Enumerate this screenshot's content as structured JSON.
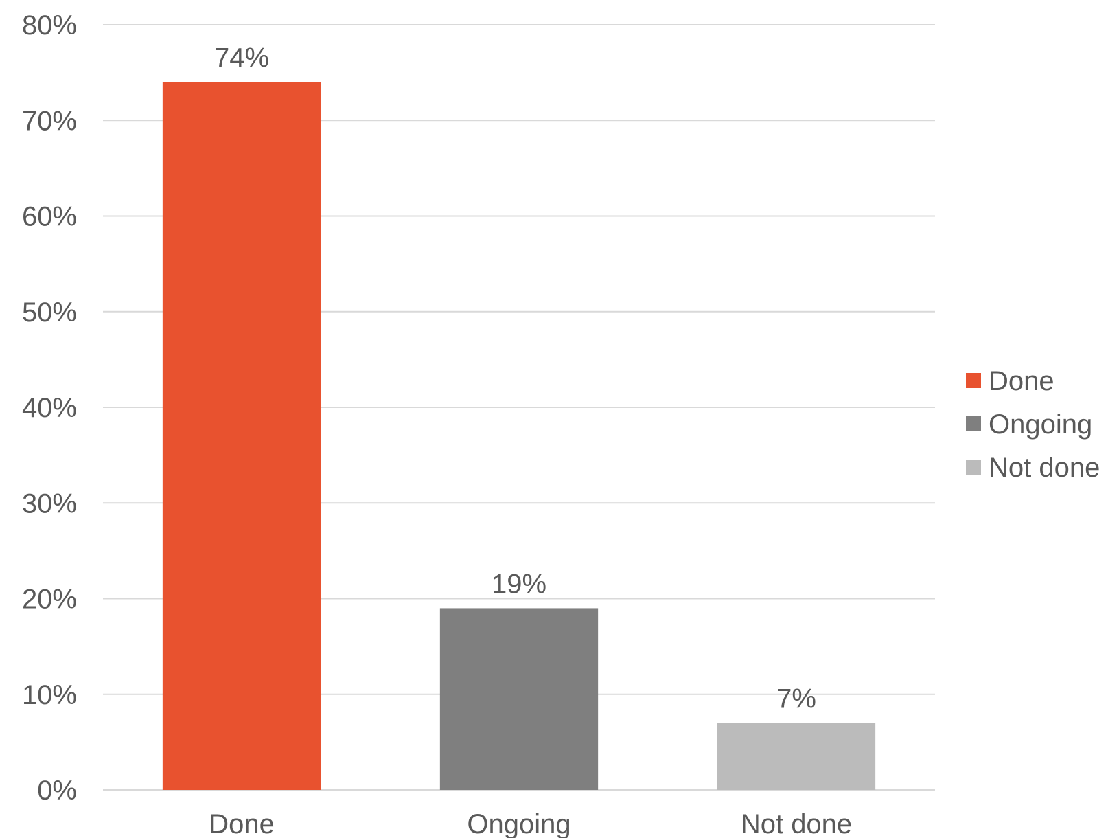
{
  "chart_data": {
    "type": "bar",
    "categories": [
      "Done",
      "Ongoing",
      "Not done"
    ],
    "values": [
      74,
      19,
      7
    ],
    "data_labels": [
      "74%",
      "19%",
      "7%"
    ],
    "colors": [
      "#e8522f",
      "#7f7f7f",
      "#bbbbbb"
    ],
    "ylim": [
      0,
      80
    ],
    "y_ticks": [
      0,
      10,
      20,
      30,
      40,
      50,
      60,
      70,
      80
    ],
    "y_tick_labels": [
      "0%",
      "10%",
      "20%",
      "30%",
      "40%",
      "50%",
      "60%",
      "70%",
      "80%"
    ],
    "grid": true,
    "legend": {
      "placement": "right",
      "entries": [
        "Done",
        "Ongoing",
        "Not done"
      ]
    },
    "title": "",
    "xlabel": "",
    "ylabel": ""
  }
}
